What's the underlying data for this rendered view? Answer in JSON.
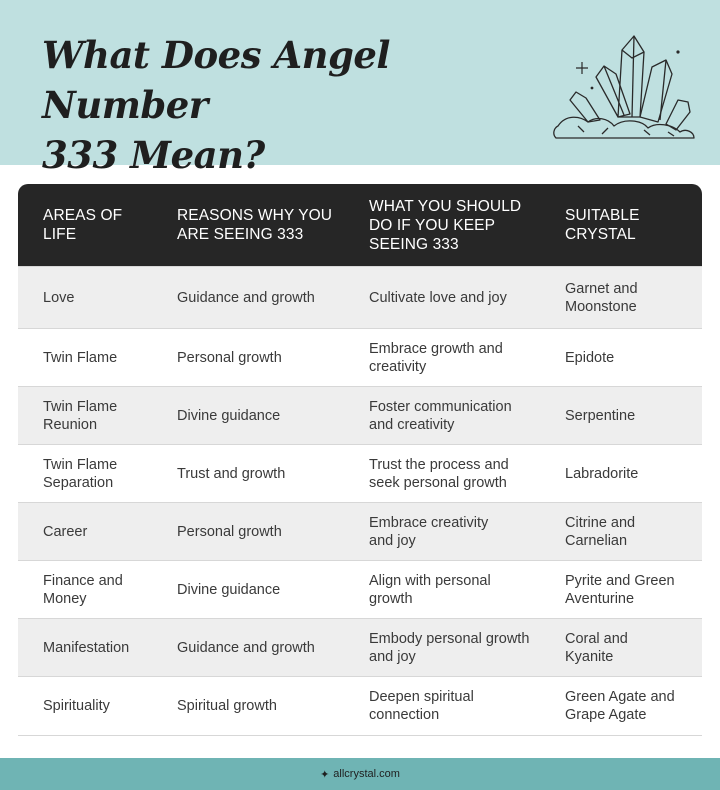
{
  "title": "What Does Angel Number\n333 Mean?",
  "icon": "crystal-cluster-icon",
  "colors": {
    "header_bg": "#bfe0e0",
    "table_header_bg": "#262626",
    "row_shade": "#eeeeee",
    "footer_bg": "#6fb4b4"
  },
  "table": {
    "headers": [
      "AREAS OF\nLIFE",
      "REASONS WHY YOU\nARE SEEING 333",
      "WHAT YOU SHOULD\nDO IF YOU KEEP\nSEEING 333",
      "SUITABLE\nCRYSTAL"
    ],
    "rows": [
      [
        "Love",
        "Guidance and growth",
        "Cultivate love and joy",
        "Garnet and\nMoonstone"
      ],
      [
        "Twin Flame",
        "Personal growth",
        "Embrace growth and\ncreativity",
        "Epidote"
      ],
      [
        "Twin Flame\nReunion",
        "Divine guidance",
        "Foster communication\nand creativity",
        "Serpentine"
      ],
      [
        "Twin Flame\nSeparation",
        "Trust and growth",
        "Trust the process and\nseek personal growth",
        "Labradorite"
      ],
      [
        "Career",
        "Personal growth",
        "Embrace creativity\nand joy",
        "Citrine and\nCarnelian"
      ],
      [
        "Finance and\nMoney",
        "Divine guidance",
        "Align with personal\ngrowth",
        "Pyrite and Green\nAventurine"
      ],
      [
        "Manifestation",
        "Guidance and growth",
        "Embody personal growth\nand joy",
        "Coral and\nKyanite"
      ],
      [
        "Spirituality",
        "Spiritual growth",
        "Deepen spiritual\nconnection",
        "Green Agate and\nGrape Agate"
      ]
    ]
  },
  "footer": {
    "icon": "sparkle-icon",
    "text": "allcrystal.com"
  }
}
